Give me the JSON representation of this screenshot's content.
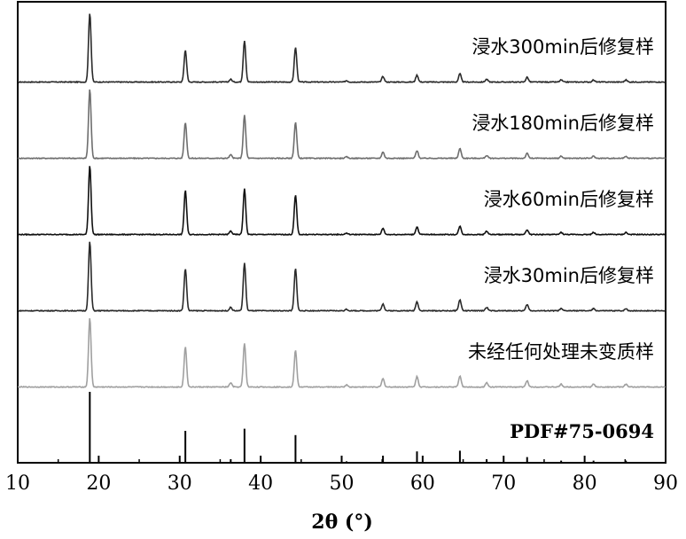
{
  "chart_data": {
    "type": "line",
    "xlabel": "2θ (°)",
    "xlim": [
      10,
      90
    ],
    "x_ticks": [
      10,
      20,
      30,
      40,
      50,
      60,
      70,
      80,
      90
    ],
    "y_ticks_shown": false,
    "grid": false,
    "peak_positions": [
      18.9,
      30.7,
      36.3,
      38.0,
      44.3,
      50.6,
      55.1,
      59.3,
      64.6,
      67.9,
      72.9,
      77.1,
      81.1,
      85.1
    ],
    "series": [
      {
        "name": "浸水300min后修复样",
        "color": "#2a2a2a",
        "intensities": [
          100,
          46,
          4,
          60,
          50,
          2,
          8,
          10,
          12,
          4,
          7,
          3,
          3,
          3
        ]
      },
      {
        "name": "浸水180min后修复样",
        "color": "#6e6e6e",
        "intensities": [
          100,
          52,
          5,
          62,
          52,
          2,
          9,
          11,
          14,
          4,
          7,
          3,
          3,
          3
        ]
      },
      {
        "name": "浸水60min后修复样",
        "color": "#111111",
        "intensities": [
          100,
          64,
          5,
          66,
          57,
          2,
          9,
          11,
          12,
          5,
          7,
          3,
          3,
          3
        ]
      },
      {
        "name": "浸水30min后修复样",
        "color": "#2a2a2a",
        "intensities": [
          100,
          61,
          5,
          69,
          61,
          2,
          10,
          13,
          16,
          5,
          9,
          3,
          3,
          3
        ]
      },
      {
        "name": "未经任何处理未变质样",
        "color": "#a0a0a0",
        "intensities": [
          100,
          58,
          6,
          63,
          53,
          3,
          12,
          15,
          16,
          6,
          9,
          4,
          4,
          4
        ]
      }
    ],
    "reference": {
      "name": "PDF#75-0694",
      "color": "#000000",
      "intensities": [
        100,
        45,
        5,
        48,
        39,
        2,
        10,
        16,
        17,
        5,
        8,
        3,
        3,
        3
      ]
    }
  }
}
